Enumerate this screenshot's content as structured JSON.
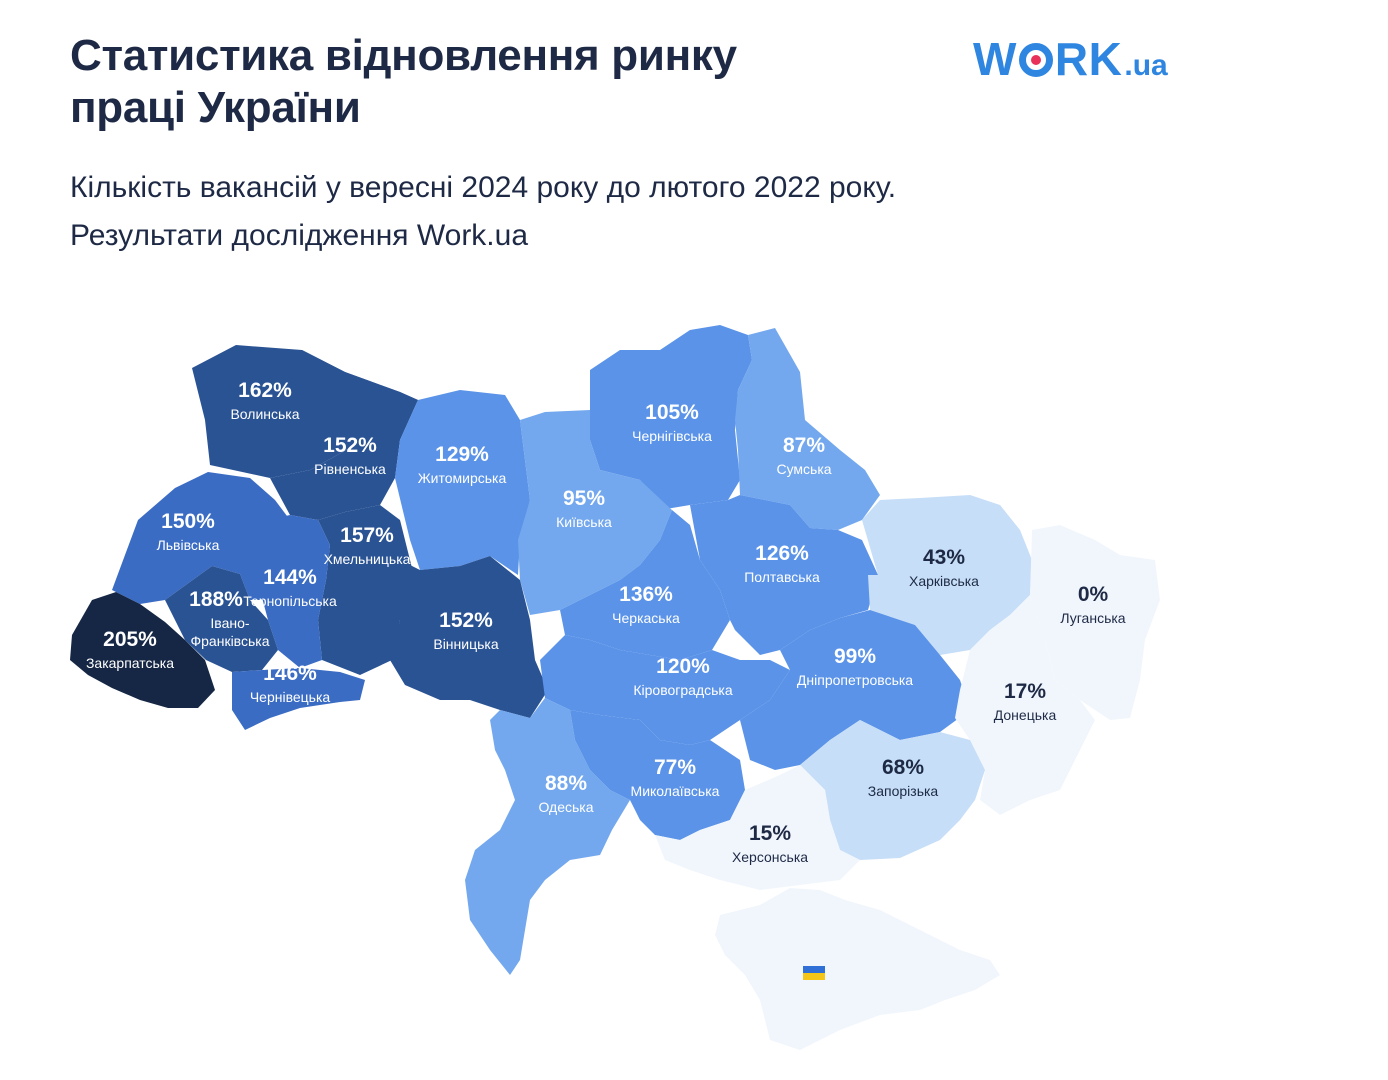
{
  "header": {
    "title_line1": "Статистика відновлення ринку",
    "title_line2": "праці України",
    "subtitle_line1": "Кількість вакансій у вересні 2024 року до лютого 2022 року.",
    "subtitle_line2": "Результати дослідження Work.ua"
  },
  "logo": {
    "part1": "W",
    "part2": "RK",
    "part3": ".ua",
    "color": "#2f86e0",
    "dot_color": "#e8325a"
  },
  "colors": {
    "darkest": "#152744",
    "dark": "#2a5394",
    "mid_dark": "#3b6cc4",
    "mid": "#5a93e8",
    "mid_light": "#73a8ee",
    "light": "#c6def7",
    "lightest": "#f1f6fd",
    "stroke": "#ffffff"
  },
  "map_data": {
    "regions": [
      {
        "id": "volynska",
        "name": "Волинська",
        "value": "162%"
      },
      {
        "id": "rivnenska",
        "name": "Рівненська",
        "value": "152%"
      },
      {
        "id": "zhytomyrska",
        "name": "Житомирська",
        "value": "129%"
      },
      {
        "id": "chernihivska",
        "name": "Чернігівська",
        "value": "105%"
      },
      {
        "id": "sumska",
        "name": "Сумська",
        "value": "87%"
      },
      {
        "id": "kyivska",
        "name": "Київська",
        "value": "95%"
      },
      {
        "id": "lvivska",
        "name": "Львівська",
        "value": "150%"
      },
      {
        "id": "khmelnytska",
        "name": "Хмельницька",
        "value": "157%"
      },
      {
        "id": "ternopilska",
        "name": "Тернопільська",
        "value": "144%"
      },
      {
        "id": "poltavska",
        "name": "Полтавська",
        "value": "126%"
      },
      {
        "id": "kharkivska",
        "name": "Харківська",
        "value": "43%"
      },
      {
        "id": "ivano_frankivska",
        "name": "Івано-Франківська",
        "value": "188%"
      },
      {
        "id": "cherkaska",
        "name": "Черкаська",
        "value": "136%"
      },
      {
        "id": "luhanska",
        "name": "Луганська",
        "value": "0%"
      },
      {
        "id": "zakarpatska",
        "name": "Закарпатська",
        "value": "205%"
      },
      {
        "id": "vinnytska",
        "name": "Вінницька",
        "value": "152%"
      },
      {
        "id": "chernivetska",
        "name": "Чернівецька",
        "value": "146%"
      },
      {
        "id": "kirovohradska",
        "name": "Кіровоградська",
        "value": "120%"
      },
      {
        "id": "dnipropetrovska",
        "name": "Дніпропетровська",
        "value": "99%"
      },
      {
        "id": "donetska",
        "name": "Донецька",
        "value": "17%"
      },
      {
        "id": "odeska",
        "name": "Одеська",
        "value": "88%"
      },
      {
        "id": "mykolaivska",
        "name": "Миколаївська",
        "value": "77%"
      },
      {
        "id": "zaporizka",
        "name": "Запорізька",
        "value": "68%"
      },
      {
        "id": "khersonska",
        "name": "Херсонська",
        "value": "15%"
      }
    ],
    "crimea_flag_icon": "ukraine-flag-icon"
  }
}
